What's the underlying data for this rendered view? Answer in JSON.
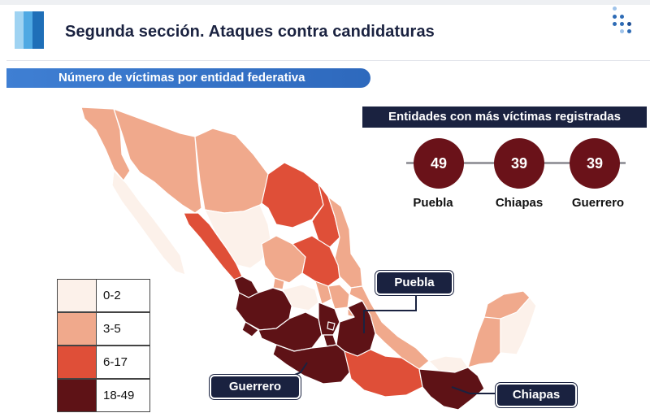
{
  "header": {
    "title": "Segunda sección. Ataques contra candidaturas",
    "subtitle": "Número de víctimas por entidad federativa"
  },
  "top_entities": {
    "title": "Entidades con más víctimas registradas",
    "items": [
      {
        "state": "Puebla",
        "victims": "49"
      },
      {
        "state": "Chiapas",
        "victims": "39"
      },
      {
        "state": "Guerrero",
        "victims": "39"
      }
    ]
  },
  "legend": {
    "classes": [
      {
        "label": "0-2",
        "color": "#fcf1ea"
      },
      {
        "label": "3-5",
        "color": "#f0a98c"
      },
      {
        "label": "6-17",
        "color": "#df4f38"
      },
      {
        "label": "18-49",
        "color": "#5e1216"
      }
    ]
  },
  "callouts": {
    "puebla": "Puebla",
    "guerrero": "Guerrero",
    "chiapas": "Chiapas"
  },
  "colors": {
    "class_0_2": "#fcf1ea",
    "class_3_5": "#f0a98c",
    "class_6_17": "#df4f38",
    "class_18_49": "#5e1216",
    "navy": "#1a2240",
    "circle": "#6a1219"
  }
}
